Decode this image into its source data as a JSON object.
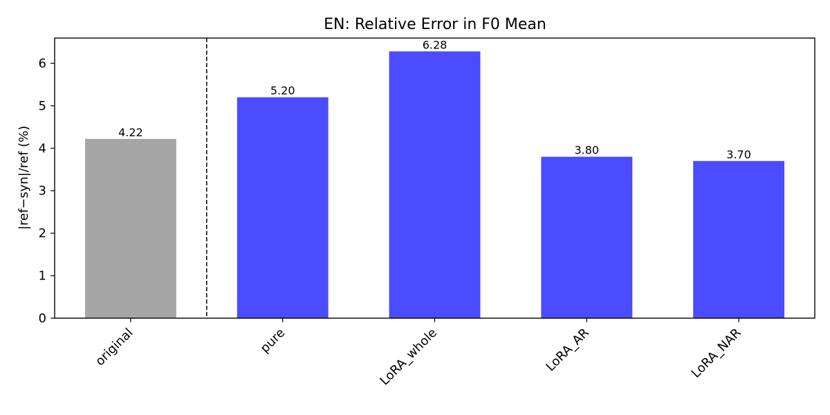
{
  "chart_data": {
    "type": "bar",
    "title": "EN: Relative Error in F0 Mean",
    "xlabel": "",
    "ylabel": "|ref−syn|/ref (%)",
    "categories": [
      "original",
      "pure",
      "LoRA_whole",
      "LoRA_AR",
      "LoRA_NAR"
    ],
    "values": [
      4.22,
      5.2,
      6.28,
      3.8,
      3.7
    ],
    "value_labels": [
      "4.22",
      "5.20",
      "6.28",
      "3.80",
      "3.70"
    ],
    "bar_colors": [
      "#a6a6a6",
      "#4b4bff",
      "#4b4bff",
      "#4b4bff",
      "#4b4bff"
    ],
    "ylim": [
      0,
      6.594
    ],
    "yticks": [
      0,
      1,
      2,
      3,
      4,
      5,
      6
    ],
    "ytick_labels": [
      "0",
      "1",
      "2",
      "3",
      "4",
      "5",
      "6"
    ],
    "separator": {
      "style": "dashed",
      "after_category": "original"
    },
    "grid": false,
    "legend": "none"
  }
}
